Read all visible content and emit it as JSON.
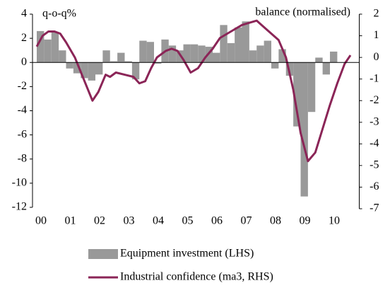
{
  "chart_data": {
    "type": "bar-line",
    "y_label": "q-o-q%",
    "y2_label": "balance (normalised)",
    "xlim": [
      2000,
      2011
    ],
    "xticks": [
      {
        "value": 2000,
        "label": "00"
      },
      {
        "value": 2001,
        "label": "01"
      },
      {
        "value": 2002,
        "label": "02"
      },
      {
        "value": 2003,
        "label": "03"
      },
      {
        "value": 2004,
        "label": "04"
      },
      {
        "value": 2005,
        "label": "05"
      },
      {
        "value": 2006,
        "label": "06"
      },
      {
        "value": 2007,
        "label": "07"
      },
      {
        "value": 2008,
        "label": "08"
      },
      {
        "value": 2009,
        "label": "09"
      },
      {
        "value": 2010,
        "label": "10"
      }
    ],
    "ylim": [
      -12,
      4
    ],
    "yticks": [
      -12,
      -10,
      -8,
      -6,
      -4,
      -2,
      0,
      2,
      4
    ],
    "y2lim": [
      -7,
      2
    ],
    "y2ticks": [
      -7,
      -6,
      -5,
      -4,
      -3,
      -2,
      -1,
      0,
      1,
      2
    ],
    "series": [
      {
        "name": "Equipment investment (LHS)",
        "type": "bar",
        "color": "#999999",
        "x": [
          2000.125,
          2000.375,
          2000.625,
          2000.875,
          2001.125,
          2001.375,
          2001.625,
          2001.875,
          2002.125,
          2002.375,
          2002.625,
          2002.875,
          2003.125,
          2003.375,
          2003.625,
          2003.875,
          2004.125,
          2004.375,
          2004.625,
          2004.875,
          2005.125,
          2005.375,
          2005.625,
          2005.875,
          2006.125,
          2006.375,
          2006.625,
          2006.875,
          2007.125,
          2007.375,
          2007.625,
          2007.875,
          2008.125,
          2008.375,
          2008.625,
          2008.875,
          2009.125,
          2009.375,
          2009.625,
          2009.875,
          2010.125
        ],
        "values": [
          2.6,
          1.9,
          2.5,
          1.0,
          -0.5,
          -0.9,
          -1.3,
          -1.5,
          -1.0,
          1.0,
          0.1,
          0.8,
          0.1,
          -1.4,
          1.8,
          1.7,
          -0.1,
          1.9,
          1.4,
          1.0,
          1.5,
          1.5,
          1.4,
          1.3,
          0.8,
          3.1,
          1.6,
          2.9,
          3.4,
          1.0,
          1.4,
          1.8,
          -0.5,
          1.1,
          -1.1,
          -5.3,
          -11.1,
          -4.1,
          0.4,
          -1.0,
          0.9
        ]
      },
      {
        "name": "Industrial confidence (ma3, RHS)",
        "type": "line",
        "axis": "y2",
        "color": "#8b2557",
        "x": [
          2000.0,
          2000.2,
          2000.4,
          2000.6,
          2000.8,
          2001.0,
          2001.3,
          2001.6,
          2001.9,
          2002.1,
          2002.35,
          2002.5,
          2002.7,
          2003.0,
          2003.3,
          2003.5,
          2003.7,
          2003.9,
          2004.1,
          2004.4,
          2004.6,
          2004.8,
          2005.0,
          2005.25,
          2005.5,
          2005.75,
          2006.0,
          2006.25,
          2006.5,
          2006.75,
          2007.0,
          2007.25,
          2007.5,
          2007.75,
          2008.0,
          2008.25,
          2008.5,
          2008.75,
          2009.0,
          2009.25,
          2009.5,
          2009.75,
          2010.0,
          2010.25,
          2010.5,
          2010.7
        ],
        "values": [
          0.5,
          1.0,
          1.2,
          1.2,
          1.1,
          0.7,
          0.0,
          -1.0,
          -2.0,
          -1.6,
          -0.8,
          -0.9,
          -0.7,
          -0.8,
          -0.9,
          -1.2,
          -1.1,
          -0.5,
          0.0,
          0.3,
          0.4,
          0.3,
          -0.1,
          -0.7,
          -0.5,
          0.0,
          0.4,
          0.9,
          1.1,
          1.3,
          1.5,
          1.6,
          1.7,
          1.4,
          1.1,
          0.8,
          0.0,
          -1.5,
          -3.5,
          -4.8,
          -4.4,
          -3.3,
          -2.2,
          -1.2,
          -0.3,
          0.1
        ]
      }
    ]
  }
}
